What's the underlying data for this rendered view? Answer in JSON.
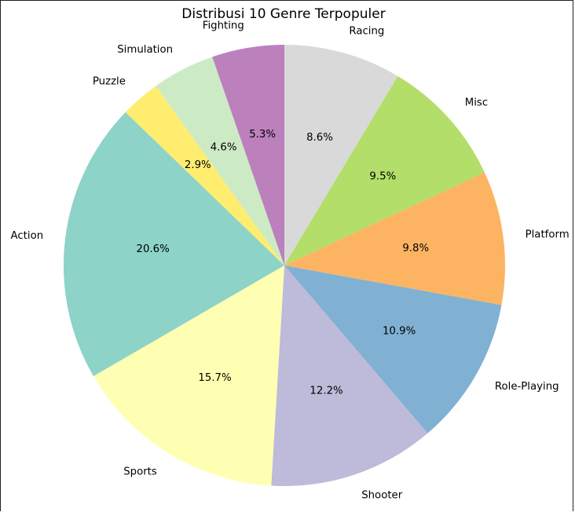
{
  "chart_data": {
    "type": "pie",
    "title": "Distribusi 10 Genre Terpopuler",
    "start_angle_deg": 90,
    "direction": "clockwise",
    "slices": [
      {
        "label": "Racing",
        "value": 8.6,
        "pct_label": "8.6%",
        "color": "#d9d9d9"
      },
      {
        "label": "Misc",
        "value": 9.5,
        "pct_label": "9.5%",
        "color": "#b3de69"
      },
      {
        "label": "Platform",
        "value": 9.8,
        "pct_label": "9.8%",
        "color": "#fdb462"
      },
      {
        "label": "Role-Playing",
        "value": 10.9,
        "pct_label": "10.9%",
        "color": "#80b1d3"
      },
      {
        "label": "Shooter",
        "value": 12.2,
        "pct_label": "12.2%",
        "color": "#bebada"
      },
      {
        "label": "Sports",
        "value": 15.7,
        "pct_label": "15.7%",
        "color": "#ffffb3"
      },
      {
        "label": "Action",
        "value": 20.6,
        "pct_label": "20.6%",
        "color": "#8dd3c7"
      },
      {
        "label": "Puzzle",
        "value": 2.9,
        "pct_label": "2.9%",
        "color": "#ffed6f"
      },
      {
        "label": "Simulation",
        "value": 4.6,
        "pct_label": "4.6%",
        "color": "#ccebc5"
      },
      {
        "label": "Fighting",
        "value": 5.3,
        "pct_label": "5.3%",
        "color": "#bc80bd"
      }
    ]
  }
}
